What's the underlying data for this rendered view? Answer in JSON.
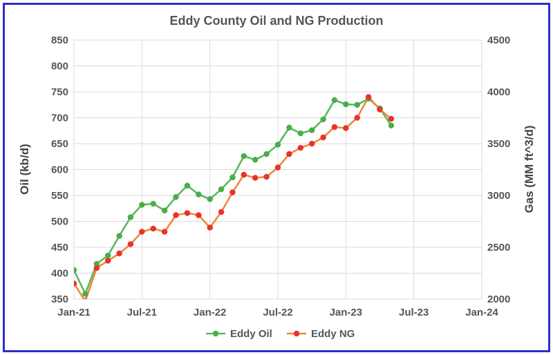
{
  "chart_data": {
    "type": "line",
    "title": "Eddy County Oil and NG Production",
    "ylabel": "Oil (kb/d)",
    "y2label": "Gas (MM ft^3/d)",
    "ylim": [
      350,
      850
    ],
    "y2lim": [
      2000,
      4500
    ],
    "y_ticks": [
      "350",
      "400",
      "450",
      "500",
      "550",
      "600",
      "650",
      "700",
      "750",
      "800",
      "850"
    ],
    "y2_ticks": [
      "2000",
      "2500",
      "3000",
      "3500",
      "4000",
      "4500"
    ],
    "x_ticks": [
      "Jan-21",
      "Jul-21",
      "Jan-22",
      "Jul-22",
      "Jan-23",
      "Jul-23",
      "Jan-24"
    ],
    "x_range_months": [
      "2021-01",
      "2024-01"
    ],
    "grid": true,
    "legend_position": "bottom",
    "x": [
      "2021-01",
      "2021-02",
      "2021-03",
      "2021-04",
      "2021-05",
      "2021-06",
      "2021-07",
      "2021-08",
      "2021-09",
      "2021-10",
      "2021-11",
      "2021-12",
      "2022-01",
      "2022-02",
      "2022-03",
      "2022-04",
      "2022-05",
      "2022-06",
      "2022-07",
      "2022-08",
      "2022-09",
      "2022-10",
      "2022-11",
      "2022-12",
      "2023-01",
      "2023-02",
      "2023-03",
      "2023-04",
      "2023-05"
    ],
    "series": [
      {
        "name": "Eddy Oil",
        "axis": "left",
        "line_color": "#5cb85c",
        "marker_color": "#4aae4a",
        "values": [
          406,
          360,
          418,
          434,
          472,
          508,
          532,
          534,
          521,
          547,
          569,
          552,
          543,
          562,
          585,
          626,
          619,
          630,
          648,
          681,
          670,
          676,
          697,
          734,
          726,
          725,
          737,
          718,
          685
        ]
      },
      {
        "name": "Eddy NG",
        "axis": "right",
        "line_color": "#f0883a",
        "marker_color": "#e8332a",
        "values": [
          2150,
          1980,
          2300,
          2370,
          2440,
          2530,
          2650,
          2680,
          2650,
          2810,
          2830,
          2810,
          2690,
          2840,
          3030,
          3200,
          3170,
          3180,
          3270,
          3400,
          3460,
          3500,
          3560,
          3660,
          3650,
          3750,
          3950,
          3830,
          3740
        ]
      }
    ]
  }
}
